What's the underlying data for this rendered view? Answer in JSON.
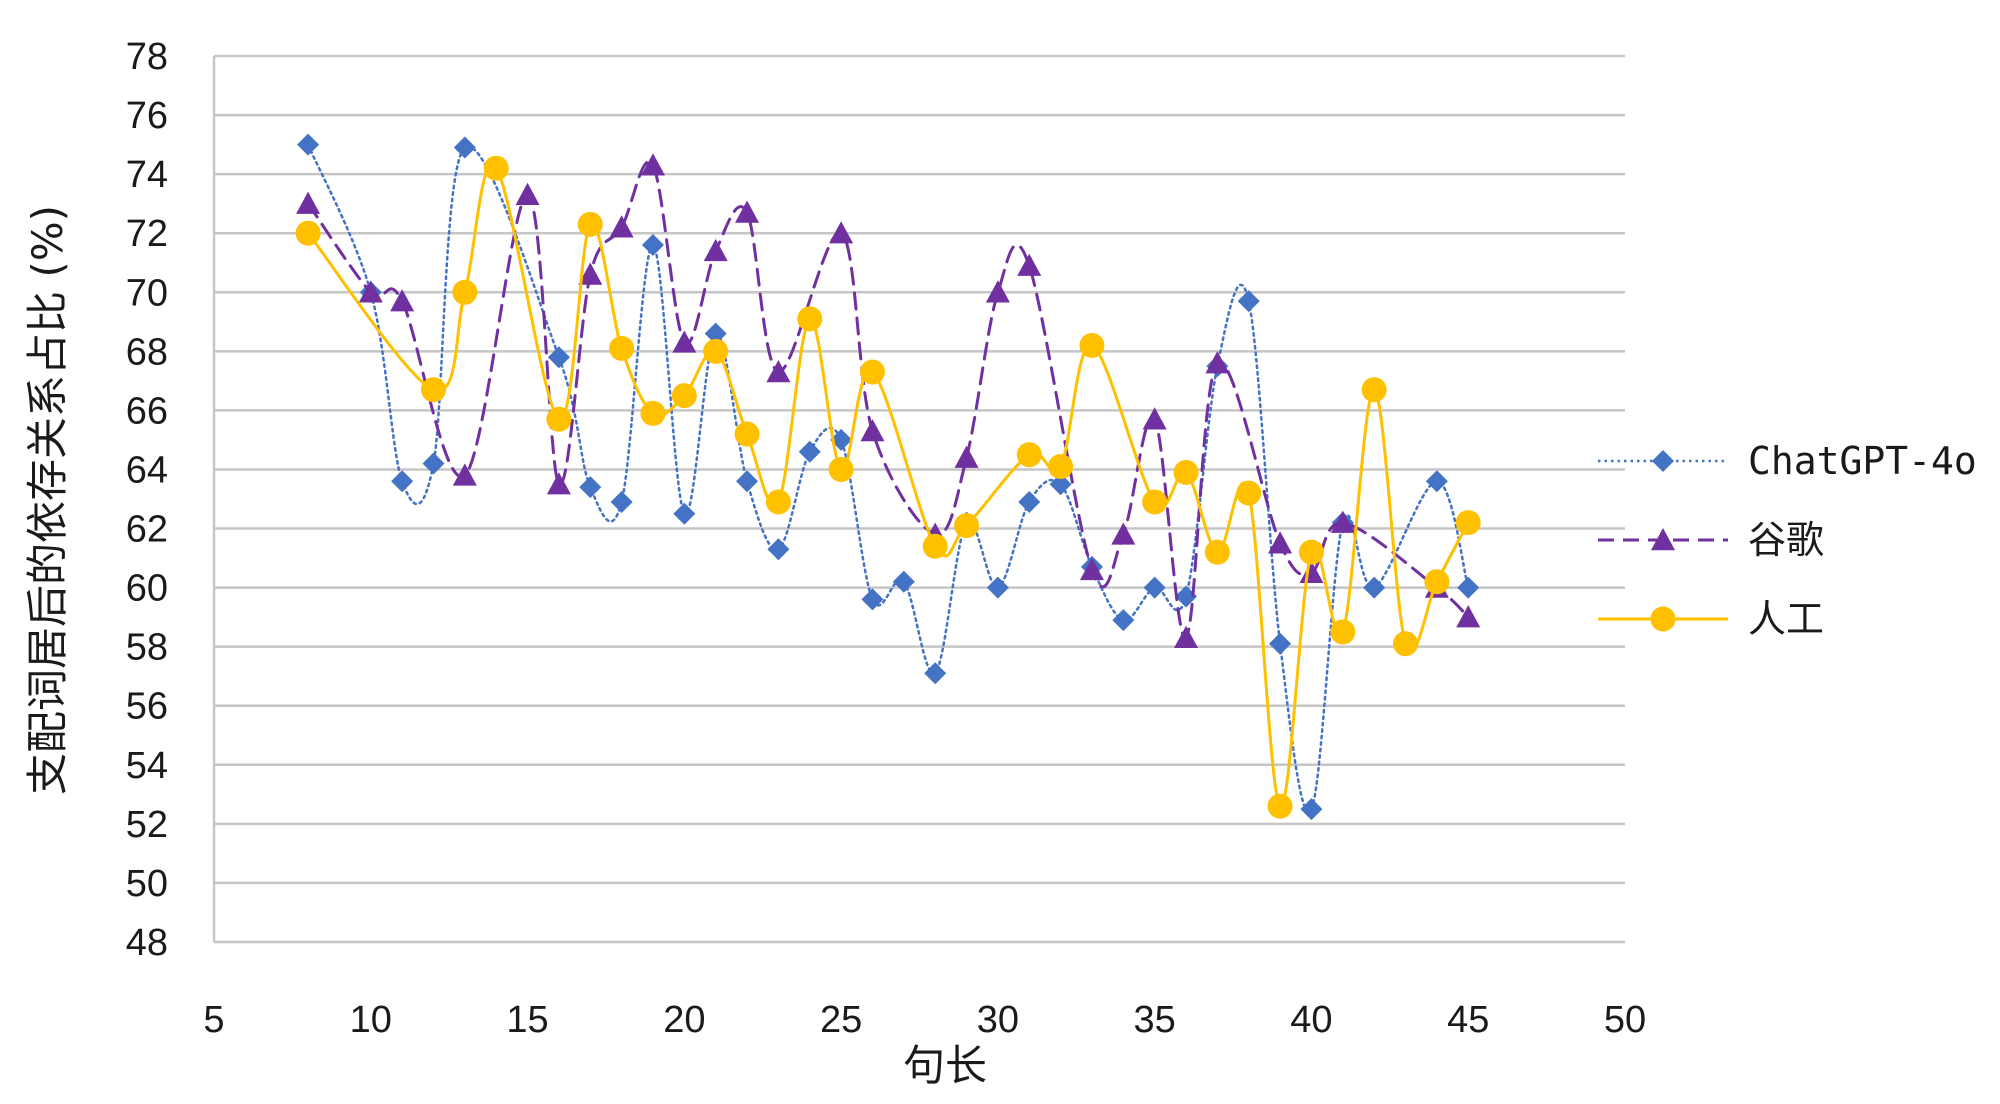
{
  "chart_data": {
    "type": "line",
    "title": "",
    "xlabel": "句长",
    "ylabel": "支配词居后的依存关系占比 (%)",
    "xlim": [
      5,
      50
    ],
    "ylim": [
      48,
      78
    ],
    "xticks": [
      5,
      10,
      15,
      20,
      25,
      30,
      35,
      40,
      45,
      50
    ],
    "yticks": [
      48,
      50,
      52,
      54,
      56,
      58,
      60,
      62,
      64,
      66,
      68,
      70,
      72,
      74,
      76,
      78
    ],
    "grid": "horizontal",
    "legend_position": "right",
    "series": [
      {
        "name": "ChatGPT-4o",
        "color": "#4472C4",
        "marker": "diamond",
        "line_style": "dotted",
        "x": [
          8,
          10,
          11,
          12,
          13,
          16,
          17,
          18,
          19,
          20,
          21,
          22,
          23,
          24,
          25,
          26,
          27,
          28,
          29,
          30,
          31,
          32,
          33,
          34,
          35,
          36,
          37,
          38,
          39,
          40,
          41,
          42,
          44,
          45
        ],
        "y": [
          75,
          70,
          63.6,
          64.2,
          74.9,
          67.8,
          63.4,
          62.9,
          71.6,
          62.5,
          68.6,
          63.6,
          61.3,
          64.6,
          65,
          59.6,
          60.2,
          57.1,
          62.2,
          60,
          62.9,
          63.5,
          60.7,
          58.9,
          60,
          59.7,
          67.5,
          69.7,
          58.1,
          52.5,
          62.2,
          60,
          63.6,
          60
        ]
      },
      {
        "name": "谷歌",
        "color": "#7030A0",
        "marker": "triangle",
        "line_style": "dashed",
        "x": [
          8,
          10,
          11,
          13,
          15,
          16,
          17,
          18,
          19,
          20,
          21,
          22,
          23,
          25,
          26,
          28,
          29,
          30,
          31,
          33,
          34,
          35,
          36,
          37,
          39,
          40,
          41,
          44,
          45
        ],
        "y": [
          73,
          70,
          69.7,
          63.8,
          73.3,
          63.5,
          70.6,
          72.2,
          74.3,
          68.3,
          71.4,
          72.7,
          67.3,
          72,
          65.3,
          61.8,
          64.4,
          70,
          70.9,
          60.6,
          61.8,
          65.7,
          58.3,
          67.6,
          61.5,
          60.5,
          62.2,
          60,
          59
        ]
      },
      {
        "name": "人工",
        "color": "#FFC000",
        "marker": "circle",
        "line_style": "solid",
        "x": [
          8,
          12,
          13,
          14,
          16,
          17,
          18,
          19,
          20,
          21,
          22,
          23,
          24,
          25,
          26,
          28,
          29,
          31,
          32,
          33,
          35,
          36,
          37,
          38,
          39,
          40,
          41,
          42,
          43,
          44,
          45
        ],
        "y": [
          72,
          66.7,
          70,
          74.2,
          65.7,
          72.3,
          68.1,
          65.9,
          66.5,
          68,
          65.2,
          62.9,
          69.1,
          64,
          67.3,
          61.4,
          62.1,
          64.5,
          64.1,
          68.2,
          62.9,
          63.9,
          61.2,
          63.2,
          52.6,
          61.2,
          58.5,
          66.7,
          58.1,
          60.2,
          62.2
        ]
      }
    ]
  }
}
